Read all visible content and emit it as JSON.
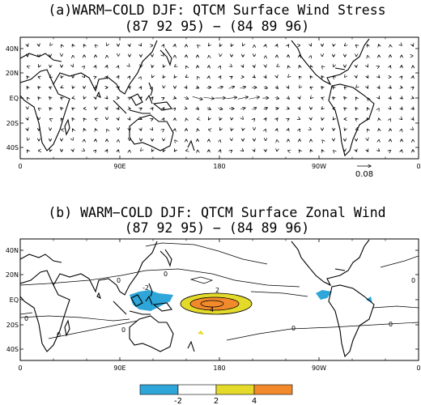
{
  "panel_a": {
    "title_line1": "(a)WARM−COLD DJF:  QTCM Surface Wind Stress",
    "title_line2": "(87 92 95) − (84 89 96)",
    "ref_vector_label": "0.08"
  },
  "panel_b": {
    "title_line1": "(b) WARM−COLD DJF:  QTCM Surface Zonal Wind",
    "title_line2": "(87 92 95) − (84 89 96)",
    "contour_labels": [
      "-2",
      "0",
      "0",
      "0",
      "0",
      "0",
      "0",
      "0",
      "2",
      "4",
      "0"
    ]
  },
  "axes": {
    "lat_ticks": [
      "40N",
      "20N",
      "EQ",
      "20S",
      "40S"
    ],
    "lon_ticks": [
      "0",
      "90E",
      "180",
      "90W",
      "0"
    ]
  },
  "colorbar": {
    "labels": [
      "-2",
      "2",
      "4"
    ],
    "colors": [
      "#2fa6d9",
      "#ffffff",
      "#e3da2a",
      "#f28a2c"
    ]
  },
  "colors": {
    "negative_shade": "#2fa6d9",
    "positive_low": "#e3da2a",
    "positive_high": "#f28a2c",
    "land_outline": "#000000"
  },
  "chart_data": {
    "type": "map",
    "lat_range": [
      -45,
      45
    ],
    "lon_range": [
      0,
      360
    ],
    "contour_levels": [
      -2,
      0,
      2,
      4
    ],
    "shaded": [
      "negative below -2 (blue)",
      "2 to 4 (yellow)",
      "above 4 (orange)"
    ]
  }
}
